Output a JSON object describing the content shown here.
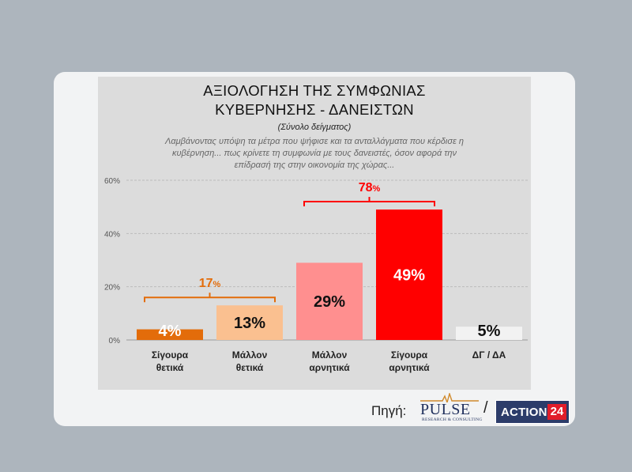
{
  "title_line1": "ΑΞΙΟΛΟΓΗΣΗ ΤΗΣ ΣΥΜΦΩΝΙΑΣ",
  "title_line2": "ΚΥΒΕΡΝΗΣΗΣ - ΔΑΝΕΙΣΤΩΝ",
  "sample_note": "(Σύνολο δείγματος)",
  "question_line1": "Λαμβάνοντας υπόψη τα μέτρα που ψήφισε και τα ανταλλάγματα που κέρδισε η",
  "question_line2": "κυβέρνηση... πως κρίνετε τη συμφωνία με τους δανειστές, όσον αφορά την",
  "question_line3": "επίδρασή της στην οικονομία της χώρας...",
  "source_label": "Πηγή:",
  "slash": "/",
  "logos": {
    "pulse_word": "PULSE",
    "pulse_sub": "RESEARCH & CONSULTING",
    "action_word": "ACTION",
    "action_num": "24"
  },
  "chart_data": {
    "type": "bar",
    "categories": [
      [
        "Σίγουρα",
        "θετικά"
      ],
      [
        "Μάλλον",
        "θετικά"
      ],
      [
        "Μάλλον",
        "αρνητικά"
      ],
      [
        "Σίγουρα",
        "αρνητικά"
      ],
      [
        "ΔΓ / ΔΑ"
      ]
    ],
    "values": [
      4,
      13,
      29,
      49,
      5
    ],
    "value_labels": [
      "4%",
      "13%",
      "29%",
      "49%",
      "5%"
    ],
    "colors": [
      "#e36c0a",
      "#fac090",
      "#ff8f8f",
      "#ff0000",
      "#f2f2f2"
    ],
    "label_colors": [
      "#ffffff",
      "#111111",
      "#111111",
      "#ffffff",
      "#111111"
    ],
    "ylim": [
      0,
      60
    ],
    "yticks": [
      "0%",
      "20%",
      "40%",
      "60%"
    ],
    "ytick_values": [
      0,
      20,
      40,
      60
    ],
    "grid": true,
    "brackets": [
      {
        "from": 0,
        "to": 1,
        "value": "17",
        "unit": "%",
        "color": "#e36c0a"
      },
      {
        "from": 2,
        "to": 3,
        "value": "78",
        "unit": "%",
        "color": "#ff0000"
      }
    ]
  }
}
